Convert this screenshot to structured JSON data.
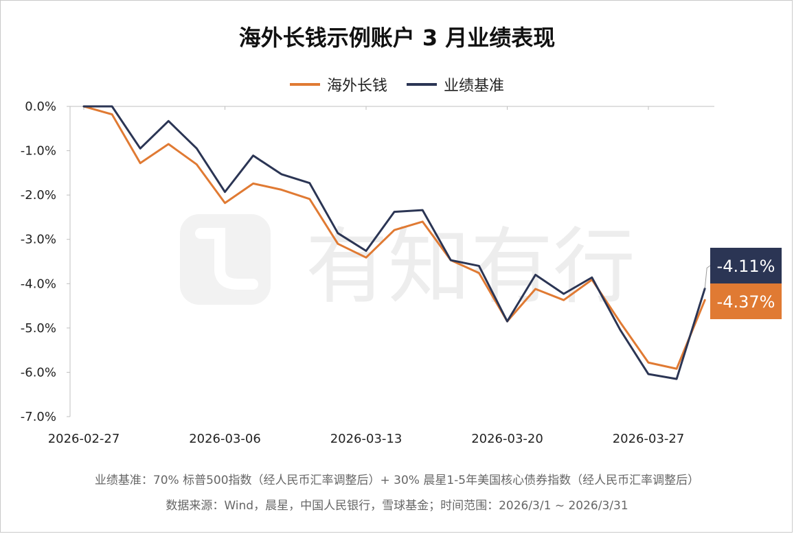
{
  "title": "海外长钱示例账户 3 月业绩表现",
  "legend": [
    {
      "name": "海外长钱",
      "color": "#E07A33"
    },
    {
      "name": "业绩基准",
      "color": "#2B3554"
    }
  ],
  "watermark": "有知有行",
  "footnotes": {
    "benchmark": "业绩基准：70% 标普500指数（经人民币汇率调整后）+ 30% 晨星1-5年美国核心债券指数（经人民币汇率调整后）",
    "source": "数据来源：Wind，晨星，中国人民银行，雪球基金；时间范围：2026/3/1 ~ 2026/3/31"
  },
  "chart_data": {
    "type": "line",
    "title": "海外长钱示例账户 3 月业绩表现",
    "xlabel": "",
    "ylabel": "",
    "ylim": [
      -7.0,
      0.0
    ],
    "yticks": [
      "0.0%",
      "-1.0%",
      "-2.0%",
      "-3.0%",
      "-4.0%",
      "-5.0%",
      "-6.0%",
      "-7.0%"
    ],
    "xticks": [
      "2026-02-27",
      "2026-03-06",
      "2026-03-13",
      "2026-03-20",
      "2026-03-27"
    ],
    "x": [
      "2026-02-27",
      "2026-03-02",
      "2026-03-03",
      "2026-03-04",
      "2026-03-05",
      "2026-03-06",
      "2026-03-09",
      "2026-03-10",
      "2026-03-11",
      "2026-03-12",
      "2026-03-13",
      "2026-03-16",
      "2026-03-17",
      "2026-03-18",
      "2026-03-19",
      "2026-03-20",
      "2026-03-23",
      "2026-03-24",
      "2026-03-25",
      "2026-03-26",
      "2026-03-27",
      "2026-03-30",
      "2026-03-31"
    ],
    "series": [
      {
        "name": "海外长钱",
        "color": "#E07A33",
        "values": [
          0.0,
          -0.18,
          -1.28,
          -0.85,
          -1.31,
          -2.18,
          -1.74,
          -1.88,
          -2.09,
          -3.1,
          -3.41,
          -2.79,
          -2.6,
          -3.47,
          -3.76,
          -4.85,
          -4.12,
          -4.37,
          -3.91,
          -4.87,
          -5.78,
          -5.92,
          -4.37
        ],
        "end_label": "-4.37%"
      },
      {
        "name": "业绩基准",
        "color": "#2B3554",
        "values": [
          0.0,
          0.0,
          -0.95,
          -0.33,
          -0.95,
          -1.93,
          -1.11,
          -1.53,
          -1.73,
          -2.86,
          -3.26,
          -2.38,
          -2.34,
          -3.47,
          -3.6,
          -4.85,
          -3.8,
          -4.23,
          -3.86,
          -5.04,
          -6.04,
          -6.15,
          -4.11
        ],
        "end_label": "-4.11%"
      }
    ],
    "grid": false,
    "legend_position": "top-center"
  }
}
